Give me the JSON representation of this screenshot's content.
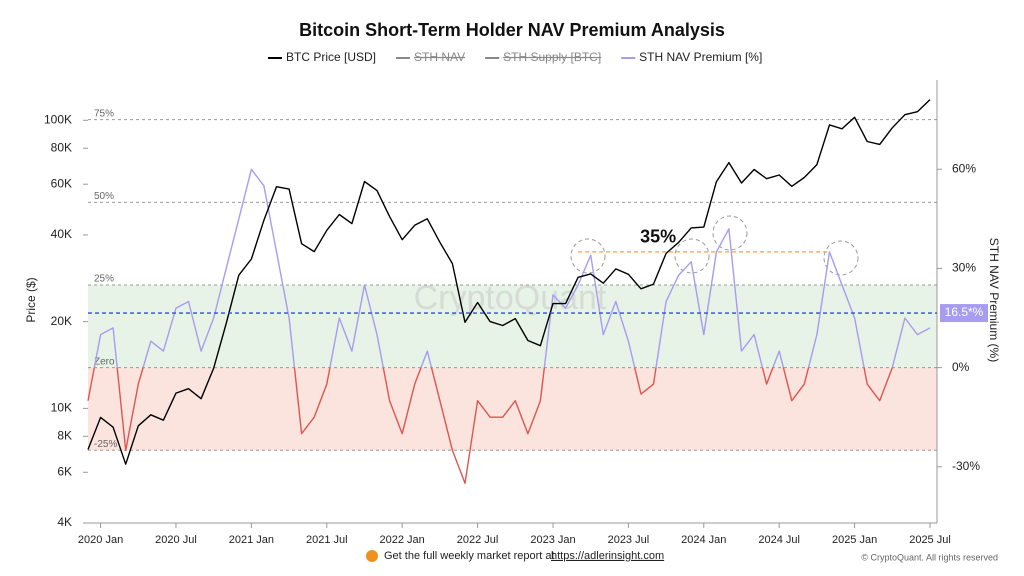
{
  "chart_data": {
    "type": "line",
    "title": "Bitcoin Short-Term Holder NAV Premium Analysis",
    "ylabel": "Price ($)",
    "y2label": "STH NAV Premium (%)",
    "watermark": "CryptoQuant",
    "x": [
      "2019-12",
      "2020-01",
      "2020-02",
      "2020-03",
      "2020-04",
      "2020-05",
      "2020-06",
      "2020-07",
      "2020-08",
      "2020-09",
      "2020-10",
      "2020-11",
      "2020-12",
      "2021-01",
      "2021-02",
      "2021-03",
      "2021-04",
      "2021-05",
      "2021-06",
      "2021-07",
      "2021-08",
      "2021-09",
      "2021-10",
      "2021-11",
      "2021-12",
      "2022-01",
      "2022-02",
      "2022-03",
      "2022-04",
      "2022-05",
      "2022-06",
      "2022-07",
      "2022-08",
      "2022-09",
      "2022-10",
      "2022-11",
      "2022-12",
      "2023-01",
      "2023-02",
      "2023-03",
      "2023-04",
      "2023-05",
      "2023-06",
      "2023-07",
      "2023-08",
      "2023-09",
      "2023-10",
      "2023-11",
      "2023-12",
      "2024-01",
      "2024-02",
      "2024-03",
      "2024-04",
      "2024-05",
      "2024-06",
      "2024-07",
      "2024-08",
      "2024-09",
      "2024-10",
      "2024-11",
      "2024-12",
      "2025-01",
      "2025-02",
      "2025-03",
      "2025-04",
      "2025-05",
      "2025-06",
      "2025-07"
    ],
    "series": [
      {
        "name": "BTC Price [USD]",
        "color": "#000000",
        "axis": "y",
        "values": [
          7200,
          9300,
          8600,
          6400,
          8700,
          9500,
          9100,
          11300,
          11700,
          10800,
          13800,
          19700,
          29000,
          33000,
          45000,
          58800,
          57700,
          37300,
          35000,
          41500,
          47100,
          43800,
          61300,
          57000,
          46300,
          38500,
          43200,
          45500,
          37700,
          31800,
          19900,
          23300,
          20000,
          19400,
          20500,
          17200,
          16500,
          23100,
          23100,
          28500,
          29300,
          27200,
          30500,
          29200,
          26000,
          27000,
          34500,
          37700,
          42300,
          42600,
          61200,
          71300,
          60600,
          67500,
          62700,
          64600,
          59000,
          63300,
          70200,
          96400,
          93400,
          102400,
          84400,
          82500,
          94200,
          104600,
          107100,
          118000
        ]
      },
      {
        "name": "STH NAV Premium [%]",
        "color": "#a79cf0",
        "negative_color": "#e0554d",
        "axis": "y2",
        "values": [
          -10,
          10,
          12,
          -25,
          -5,
          8,
          5,
          18,
          20,
          5,
          15,
          30,
          45,
          60,
          55,
          35,
          15,
          -20,
          -15,
          -5,
          15,
          5,
          25,
          10,
          -10,
          -20,
          -5,
          5,
          -10,
          -25,
          -35,
          -10,
          -15,
          -15,
          -10,
          -20,
          -10,
          22,
          18,
          25,
          34,
          10,
          20,
          8,
          -8,
          -5,
          20,
          28,
          32,
          10,
          35,
          42,
          5,
          10,
          -5,
          5,
          -10,
          -5,
          10,
          35,
          25,
          15,
          -5,
          -10,
          0,
          15,
          10,
          12
        ]
      }
    ],
    "hidden_series": [
      {
        "name": "STH NAV",
        "color": "#888888"
      },
      {
        "name": "STH Supply [BTC]",
        "color": "#888888"
      }
    ],
    "xlim": [
      "2019-12",
      "2025-07"
    ],
    "xticks": [
      {
        "value": "2020-01",
        "label": "2020 Jan"
      },
      {
        "value": "2020-07",
        "label": "2020 Jul"
      },
      {
        "value": "2021-01",
        "label": "2021 Jan"
      },
      {
        "value": "2021-07",
        "label": "2021 Jul"
      },
      {
        "value": "2022-01",
        "label": "2022 Jan"
      },
      {
        "value": "2022-07",
        "label": "2022 Jul"
      },
      {
        "value": "2023-01",
        "label": "2023 Jan"
      },
      {
        "value": "2023-07",
        "label": "2023 Jul"
      },
      {
        "value": "2024-01",
        "label": "2024 Jan"
      },
      {
        "value": "2024-07",
        "label": "2024 Jul"
      },
      {
        "value": "2025-01",
        "label": "2025 Jan"
      },
      {
        "value": "2025-07",
        "label": "2025 Jul"
      }
    ],
    "ylim": [
      4000,
      138000
    ],
    "log_scale": true,
    "yticks": [
      {
        "value": 4000,
        "label": "4K"
      },
      {
        "value": 6000,
        "label": "6K"
      },
      {
        "value": 8000,
        "label": "8K"
      },
      {
        "value": 10000,
        "label": "10K"
      },
      {
        "value": 20000,
        "label": "20K"
      },
      {
        "value": 40000,
        "label": "40K"
      },
      {
        "value": 60000,
        "label": "60K"
      },
      {
        "value": 80000,
        "label": "80K"
      },
      {
        "value": 100000,
        "label": "100K"
      }
    ],
    "y2lim": [
      -47,
      87
    ],
    "y2ticks": [
      {
        "value": -30,
        "label": "-30%"
      },
      {
        "value": 0,
        "label": "0%"
      },
      {
        "value": 30,
        "label": "30%"
      },
      {
        "value": 60,
        "label": "60%"
      }
    ],
    "levels": [
      {
        "value": 75,
        "label": "75%"
      },
      {
        "value": 50,
        "label": "50%"
      },
      {
        "value": 25,
        "label": "25%"
      },
      {
        "value": 0,
        "label": "Zero"
      },
      {
        "value": -25,
        "label": "-25%"
      }
    ],
    "bands": [
      {
        "from": 0,
        "to": 25,
        "color": "#e6f3e6"
      },
      {
        "from": -25,
        "to": 0,
        "color": "#fbe3de"
      }
    ],
    "annotations": [
      {
        "text": "35%",
        "value": 35,
        "from": "2023-03",
        "to": "2024-11",
        "color": "#f0a050"
      },
      {
        "value": 16.5,
        "label": "16.5*%",
        "color": "#3048f0"
      }
    ],
    "footer": {
      "text": "Get the full weekly market report at",
      "link": "https://adlerinsight.com",
      "copyright": "© CryptoQuant. All rights reserved"
    }
  }
}
